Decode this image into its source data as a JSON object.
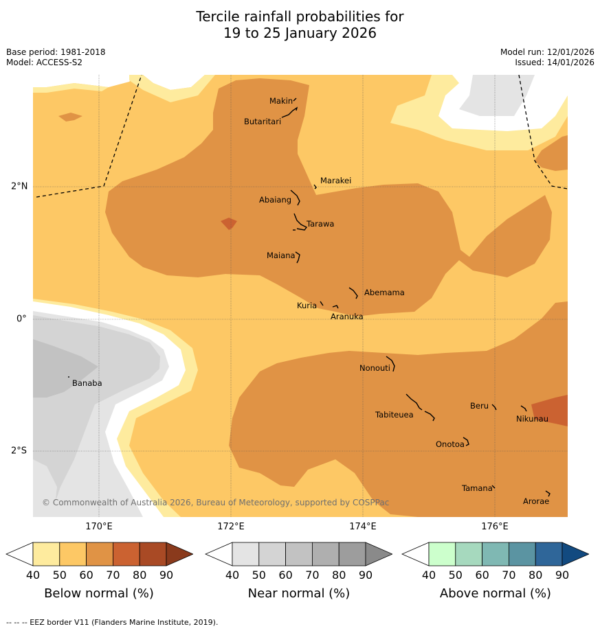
{
  "title": {
    "line1": "Tercile rainfall probabilities for",
    "line2": "19 to 25 January 2026"
  },
  "meta": {
    "base_period": "Base period: 1981-2018",
    "model": "Model: ACCESS-S2",
    "model_run": "Model run: 12/01/2026",
    "issued": "Issued: 14/01/2026"
  },
  "axes": {
    "lon_labels": [
      "170°E",
      "172°E",
      "174°E",
      "176°E"
    ],
    "lat_labels": [
      "2°N",
      "0°",
      "2°S"
    ]
  },
  "islands": {
    "makin": "Makin",
    "butaritari": "Butaritari",
    "marakei": "Marakei",
    "abaiang": "Abaiang",
    "tarawa": "Tarawa",
    "maiana": "Maiana",
    "abemama": "Abemama",
    "kuria": "Kuria",
    "aranuka": "Aranuka",
    "banaba": "Banaba",
    "nonouti": "Nonouti",
    "tabiteuea": "Tabiteuea",
    "beru": "Beru",
    "nikunau": "Nikunau",
    "onotoa": "Onotoa",
    "tamana": "Tamana",
    "arorae": "Arorae"
  },
  "copyright": "© Commonwealth of Australia 2026, Bureau of Meteorology, supported by COSPPac",
  "colorbars": {
    "ticks": [
      "40",
      "50",
      "60",
      "70",
      "80",
      "90"
    ],
    "below": {
      "label": "Below normal (%)",
      "colors": [
        "#ffffff",
        "#feeb9e",
        "#fdc865",
        "#e09345",
        "#cb6231",
        "#a94a25",
        "#8a3a1c"
      ]
    },
    "near": {
      "label": "Near normal (%)",
      "colors": [
        "#ffffff",
        "#e4e4e4",
        "#d4d4d4",
        "#c2c2c2",
        "#afafaf",
        "#9d9d9d",
        "#8a8a8a"
      ]
    },
    "above": {
      "label": "Above normal (%)",
      "colors": [
        "#ffffff",
        "#ccffcc",
        "#a6d9be",
        "#7fb8b3",
        "#5b94a2",
        "#2f6699",
        "#124a80"
      ]
    }
  },
  "footer": "-- -- -- EEZ border V11 (Flanders Marine Institute, 2019)."
}
